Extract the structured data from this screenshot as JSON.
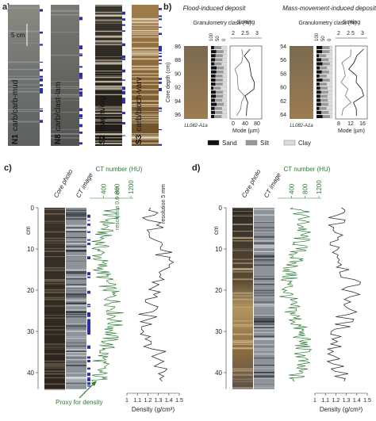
{
  "panel_a": {
    "label": "a)",
    "scale": "5 cm",
    "cores": [
      {
        "id": "N1",
        "type": "carb/carb-mud"
      },
      {
        "id": "N8",
        "type": "carb/clast-lam"
      },
      {
        "id": "S2",
        "type": "magm/org"
      },
      {
        "id": "S3",
        "type": "carb/bioch-varv"
      }
    ]
  },
  "panel_b": {
    "label": "b)",
    "legend": [
      "Sand",
      "Silt",
      "Clay"
    ],
    "plots": [
      {
        "title": "Flood-induced deposit",
        "granulometry": "Granulometry class (%)",
        "granulometry_ticks": [
          100,
          50,
          0
        ],
        "sorting": "Sorting",
        "sorting_ticks": [
          2,
          2.5,
          3
        ],
        "depth_label": "Core depth (cm)",
        "depth_ticks": [
          86,
          88,
          90,
          92,
          94,
          96
        ],
        "mode": "Mode (µm)",
        "mode_ticks": [
          0,
          40,
          80
        ],
        "core": "LL082-A1a"
      },
      {
        "title": "Mass-movement-induced deposit",
        "granulometry": "Granulometry class (%)",
        "granulometry_ticks": [
          100,
          50,
          0
        ],
        "sorting": "Sorting",
        "sorting_ticks": [
          2,
          2.5,
          3
        ],
        "depth_ticks": [
          54,
          56,
          58,
          60,
          62,
          64
        ],
        "mode": "Mode (µm)",
        "mode_ticks": [
          8,
          12,
          16
        ],
        "core": "LL082-A1a"
      }
    ]
  },
  "panel_c": {
    "label": "c)",
    "core_photo": "Core photo",
    "ct_image": "CT image",
    "ct_number": "CT number (HU)",
    "ct_ticks": [
      400,
      800,
      1200
    ],
    "depth_unit": "cm",
    "depth_ticks": [
      0,
      10,
      20,
      30,
      40
    ],
    "ct_resolution": "resolution 0.6 mm",
    "density_resolution": "resolution 5 mm",
    "proxy": "Proxy for density",
    "density": "Density (g/cm³)",
    "density_ticks": [
      1,
      1.1,
      1.2,
      1.3,
      1.4,
      1.5
    ]
  },
  "panel_d": {
    "label": "d)",
    "core_photo": "Core photo",
    "ct_image": "CT image",
    "ct_number": "CT number (HU)",
    "ct_ticks": [
      400,
      800,
      1200
    ],
    "depth_unit": "cm",
    "depth_ticks": [
      0,
      10,
      20,
      30,
      40
    ],
    "density": "Density (g/cm³)",
    "density_ticks": [
      1,
      1.1,
      1.2,
      1.3,
      1.4,
      1.5
    ]
  }
}
